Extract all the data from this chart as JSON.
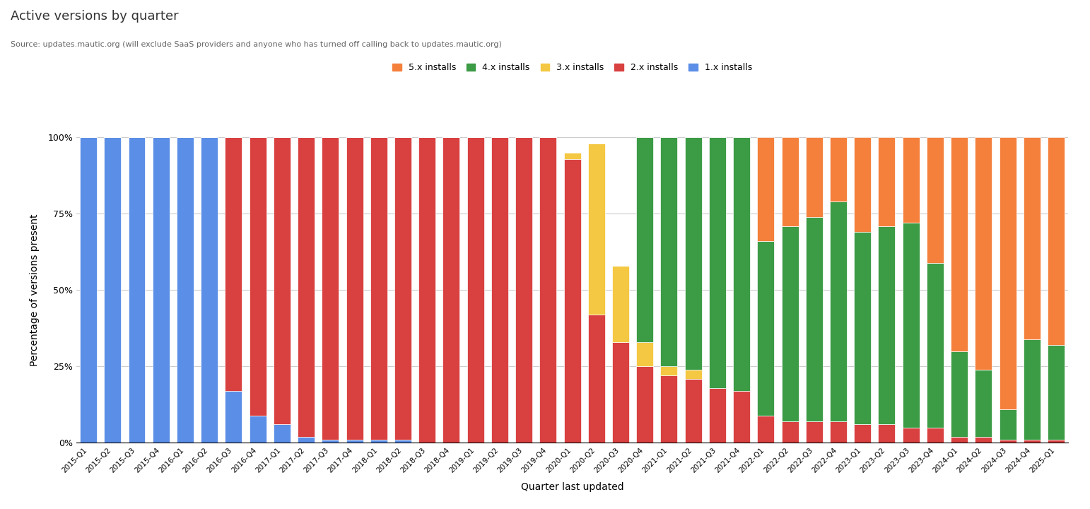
{
  "title": "Active versions by quarter",
  "subtitle": "Source: updates.mautic.org (will exclude SaaS providers and anyone who has turned off calling back to updates.mautic.org)",
  "xlabel": "Quarter last updated",
  "ylabel": "Percentage of versions present",
  "background_color": "#ffffff",
  "legend_labels": [
    "5.x installs",
    "4.x installs",
    "3.x installs",
    "2.x installs",
    "1.x installs"
  ],
  "colors": {
    "5x": "#F4803C",
    "4x": "#3C9B45",
    "3x": "#F4C842",
    "2x": "#D94040",
    "1x": "#5B8EE6"
  },
  "quarters": [
    "2015-Q1",
    "2015-Q2",
    "2015-Q3",
    "2015-Q4",
    "2016-Q1",
    "2016-Q2",
    "2016-Q3",
    "2016-Q4",
    "2017-Q1",
    "2017-Q2",
    "2017-Q3",
    "2017-Q4",
    "2018-Q1",
    "2018-Q2",
    "2018-Q3",
    "2018-Q4",
    "2019-Q1",
    "2019-Q2",
    "2019-Q3",
    "2019-Q4",
    "2020-Q1",
    "2020-Q2",
    "2020-Q3",
    "2020-Q4",
    "2021-Q1",
    "2021-Q2",
    "2021-Q3",
    "2021-Q4",
    "2022-Q1",
    "2022-Q2",
    "2022-Q3",
    "2022-Q4",
    "2023-Q1",
    "2023-Q2",
    "2023-Q3",
    "2023-Q4",
    "2024-Q1",
    "2024-Q2",
    "2024-Q3",
    "2024-Q4",
    "2025-Q1"
  ],
  "data": {
    "1x": [
      100,
      100,
      100,
      100,
      100,
      100,
      17,
      9,
      6,
      2,
      1,
      1,
      1,
      1,
      0,
      0,
      0,
      0,
      0,
      0,
      0,
      0,
      0,
      0,
      0,
      0,
      0,
      0,
      0,
      0,
      0,
      0,
      0,
      0,
      0,
      0,
      0,
      0,
      0,
      0,
      0
    ],
    "2x": [
      0,
      0,
      0,
      0,
      0,
      0,
      83,
      91,
      94,
      98,
      99,
      99,
      99,
      99,
      100,
      100,
      100,
      100,
      100,
      100,
      93,
      42,
      33,
      25,
      22,
      21,
      18,
      17,
      9,
      7,
      7,
      7,
      6,
      6,
      5,
      5,
      2,
      2,
      1,
      1,
      1
    ],
    "3x": [
      0,
      0,
      0,
      0,
      0,
      0,
      0,
      0,
      0,
      0,
      0,
      0,
      0,
      0,
      0,
      0,
      0,
      0,
      0,
      0,
      2,
      56,
      25,
      8,
      3,
      3,
      0,
      0,
      0,
      0,
      0,
      0,
      0,
      0,
      0,
      0,
      0,
      0,
      0,
      0,
      0
    ],
    "4x": [
      0,
      0,
      0,
      0,
      0,
      0,
      0,
      0,
      0,
      0,
      0,
      0,
      0,
      0,
      0,
      0,
      0,
      0,
      0,
      0,
      0,
      0,
      0,
      67,
      75,
      76,
      82,
      83,
      57,
      64,
      67,
      72,
      63,
      65,
      67,
      54,
      28,
      22,
      10,
      33,
      31
    ],
    "5x": [
      0,
      0,
      0,
      0,
      0,
      0,
      0,
      0,
      0,
      0,
      0,
      0,
      0,
      0,
      0,
      0,
      0,
      0,
      0,
      0,
      0,
      0,
      0,
      0,
      0,
      0,
      0,
      0,
      34,
      29,
      26,
      21,
      31,
      29,
      28,
      41,
      70,
      76,
      89,
      66,
      68
    ]
  }
}
